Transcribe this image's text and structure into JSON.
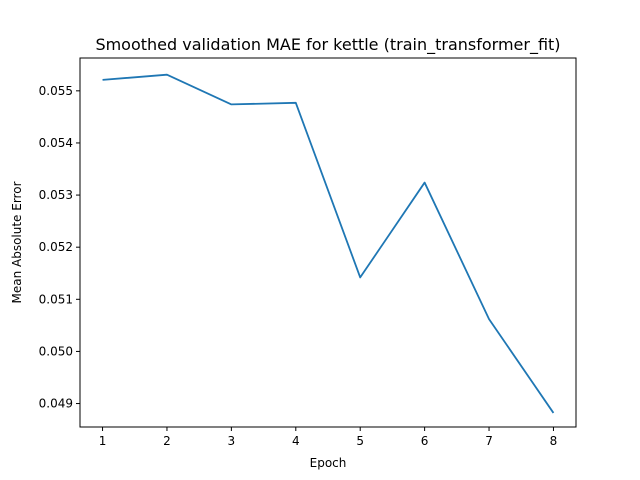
{
  "chart_data": {
    "type": "line",
    "title": "Smoothed validation MAE for kettle (train_transformer_fit)",
    "xlabel": "Epoch",
    "ylabel": "Mean Absolute Error",
    "xlim": [
      0.65,
      8.35
    ],
    "ylim": [
      0.04855,
      0.05563
    ],
    "xticks": [
      1,
      2,
      3,
      4,
      5,
      6,
      7,
      8
    ],
    "xtick_labels": [
      "1",
      "2",
      "3",
      "4",
      "5",
      "6",
      "7",
      "8"
    ],
    "yticks": [
      0.049,
      0.05,
      0.051,
      0.052,
      0.053,
      0.054,
      0.055
    ],
    "ytick_labels": [
      "0.049",
      "0.050",
      "0.051",
      "0.052",
      "0.053",
      "0.054",
      "0.055"
    ],
    "grid": false,
    "series": [
      {
        "x": [
          1,
          2,
          3,
          4,
          5,
          6,
          7,
          8
        ],
        "y": [
          0.05521,
          0.05531,
          0.05474,
          0.05477,
          0.05142,
          0.05324,
          0.05062,
          0.04882
        ],
        "color": "#1f77b4"
      }
    ]
  }
}
